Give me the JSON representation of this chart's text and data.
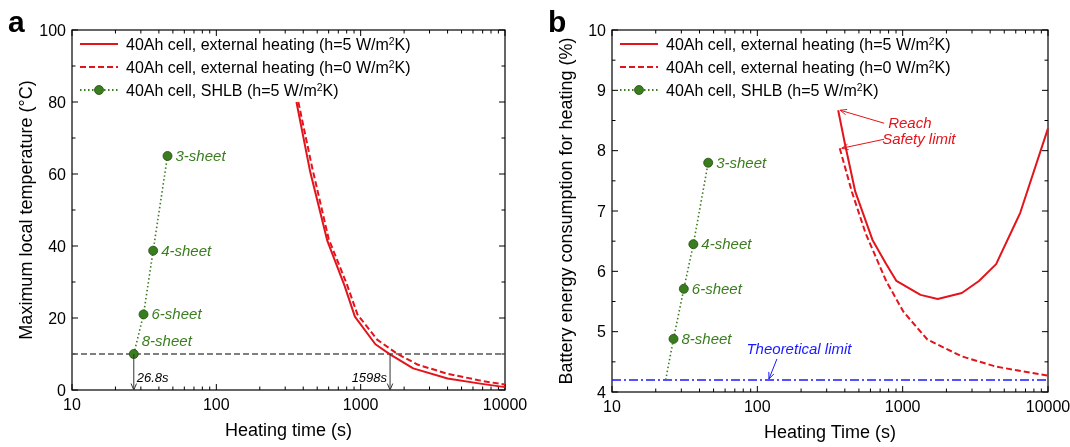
{
  "chart_data": [
    {
      "type": "line",
      "title": "a",
      "xlabel": "Heating time (s)",
      "ylabel": "Maximum local temperature (°C)",
      "log": "x",
      "legend": "top left",
      "xlim": [
        10,
        10000
      ],
      "ylim": [
        0,
        100
      ],
      "xticks": [
        10,
        {
          "value": 20,
          "label": null
        },
        {
          "value": 30,
          "label": null
        },
        {
          "value": 40,
          "label": null
        },
        {
          "value": 50,
          "label": null
        },
        {
          "value": 60,
          "label": null
        },
        {
          "value": 70,
          "label": null
        },
        {
          "value": 80,
          "label": null
        },
        {
          "value": 90,
          "label": null
        },
        100,
        {
          "value": 200,
          "label": null
        },
        {
          "value": 300,
          "label": null
        },
        {
          "value": 400,
          "label": null
        },
        {
          "value": 500,
          "label": null
        },
        {
          "value": 600,
          "label": null
        },
        {
          "value": 700,
          "label": null
        },
        {
          "value": 800,
          "label": null
        },
        {
          "value": 900,
          "label": null
        },
        1000,
        {
          "value": 2000,
          "label": null
        },
        {
          "value": 3000,
          "label": null
        },
        {
          "value": 4000,
          "label": null
        },
        {
          "value": 5000,
          "label": null
        },
        {
          "value": 6000,
          "label": null
        },
        {
          "value": 7000,
          "label": null
        },
        {
          "value": 8000,
          "label": null
        },
        {
          "value": 9000,
          "label": null
        },
        10000
      ],
      "yticks": [
        0,
        {
          "value": 10,
          "label": null
        },
        20,
        {
          "value": 30,
          "label": null
        },
        40,
        {
          "value": 50,
          "label": null
        },
        60,
        {
          "value": 70,
          "label": null
        },
        80,
        {
          "value": 90,
          "label": null
        },
        100
      ],
      "series": [
        {
          "name": "40Ah cell, external heating (h=5 W/m$^{2}$K)",
          "color": "#e3141b",
          "line_style": "solid",
          "marker": "none",
          "x": [
            359,
            447,
            588,
            773,
            912,
            1265,
            1598,
            2312,
            4000,
            6920,
            10000
          ],
          "values": [
            80,
            60.6,
            41.4,
            29,
            20.4,
            12.7,
            9.9,
            6,
            3.2,
            1.7,
            0.8
          ]
        },
        {
          "name": "40Ah cell, external heating (h=0 W/m$^{2}$K)",
          "color": "#e3141b",
          "line_style": "dashed",
          "marker": "none",
          "x": [
            370,
            460,
            600,
            800,
            950,
            1300,
            1800,
            2500,
            4000,
            7000,
            10000
          ],
          "values": [
            80,
            62,
            42,
            29.5,
            21,
            14,
            10,
            7,
            4.5,
            2.5,
            1.5
          ]
        },
        {
          "name": "40Ah cell, SHLB (h=5 W/m$^{2}$K)",
          "color": "#3a7d1e",
          "line_style": "dotted",
          "marker": "circle",
          "x": [
            26.8,
            31.3,
            36.5,
            45.9
          ],
          "values": [
            10,
            21,
            38.7,
            65
          ]
        }
      ],
      "ref_lines": [
        {
          "axis": "y",
          "value": 10,
          "color": "#555555",
          "line_style": "dashed"
        }
      ],
      "annotations": [
        {
          "text": "26.8s",
          "x": 26.8,
          "y": 10
        },
        {
          "text": "1598s",
          "x": 1598,
          "y": 10
        },
        {
          "text": "8-sheet",
          "x": 26.8,
          "y": 10
        },
        {
          "text": "6-sheet",
          "x": 31.3,
          "y": 21
        },
        {
          "text": "4-sheet",
          "x": 36.5,
          "y": 38.7
        },
        {
          "text": "3-sheet",
          "x": 45.9,
          "y": 65
        }
      ]
    },
    {
      "type": "line",
      "title": "b",
      "xlabel": "Heating Time (s)",
      "ylabel": "Battery energy consumption for heating (%)",
      "log": "x",
      "legend": "top left",
      "xlim": [
        10,
        10000
      ],
      "ylim": [
        4,
        10
      ],
      "xticks": [
        10,
        {
          "value": 20,
          "label": null
        },
        {
          "value": 30,
          "label": null
        },
        {
          "value": 40,
          "label": null
        },
        {
          "value": 50,
          "label": null
        },
        {
          "value": 60,
          "label": null
        },
        {
          "value": 70,
          "label": null
        },
        {
          "value": 80,
          "label": null
        },
        {
          "value": 90,
          "label": null
        },
        100,
        {
          "value": 200,
          "label": null
        },
        {
          "value": 300,
          "label": null
        },
        {
          "value": 400,
          "label": null
        },
        {
          "value": 500,
          "label": null
        },
        {
          "value": 600,
          "label": null
        },
        {
          "value": 700,
          "label": null
        },
        {
          "value": 800,
          "label": null
        },
        {
          "value": 900,
          "label": null
        },
        1000,
        {
          "value": 2000,
          "label": null
        },
        {
          "value": 3000,
          "label": null
        },
        {
          "value": 4000,
          "label": null
        },
        {
          "value": 5000,
          "label": null
        },
        {
          "value": 6000,
          "label": null
        },
        {
          "value": 7000,
          "label": null
        },
        {
          "value": 8000,
          "label": null
        },
        {
          "value": 9000,
          "label": null
        },
        10000
      ],
      "yticks": [
        4,
        {
          "value": 4.5,
          "label": null
        },
        5,
        {
          "value": 5.5,
          "label": null
        },
        6,
        {
          "value": 6.5,
          "label": null
        },
        7,
        {
          "value": 7.5,
          "label": null
        },
        8,
        {
          "value": 8.5,
          "label": null
        },
        9,
        {
          "value": 9.5,
          "label": null
        },
        10
      ],
      "series": [
        {
          "name": "40Ah cell, external heating (h=5 W/m$^{2}$K)",
          "color": "#e3141b",
          "line_style": "solid",
          "marker": "none",
          "x": [
            360,
            401,
            472,
            620,
            770,
            906,
            1327,
            1742,
            2553,
            3350,
            4396,
            6440,
            10000
          ],
          "values": [
            8.67,
            8.11,
            7.32,
            6.52,
            6.12,
            5.84,
            5.61,
            5.54,
            5.64,
            5.84,
            6.12,
            6.97,
            8.37
          ]
        },
        {
          "name": "40Ah cell, external heating (h=0 W/m$^{2}$K)",
          "color": "#e3141b",
          "line_style": "dashed",
          "marker": "none",
          "x": [
            369,
            447,
            556,
            770,
            1012,
            1479,
            2553,
            4396,
            10000
          ],
          "values": [
            8.04,
            7.32,
            6.63,
            5.84,
            5.33,
            4.87,
            4.59,
            4.42,
            4.27
          ]
        },
        {
          "name": "40Ah cell, SHLB (h=5 W/m$^{2}$K)",
          "color": "#3a7d1e",
          "line_style": "dotted",
          "marker": "circle",
          "x": [
            26.5,
            31.2,
            36.3,
            45.9
          ],
          "values": [
            4.88,
            5.71,
            6.45,
            7.8
          ]
        },
        {
          "color": "#3a7d1e",
          "line_style": "dotted",
          "marker": "none",
          "x": [
            23.4,
            26.5
          ],
          "values": [
            4.2,
            4.88
          ]
        }
      ],
      "ref_lines": [
        {
          "axis": "y",
          "value": 4.2,
          "label": "Theoretical limit",
          "color": "#1a1aff",
          "line_style": "dashdot"
        }
      ],
      "annotations": [
        {
          "text": "Reach Safety limit",
          "x": 360,
          "y": 8.67
        },
        {
          "text": "8-sheet",
          "x": 26.5,
          "y": 4.88
        },
        {
          "text": "6-sheet",
          "x": 31.2,
          "y": 5.71
        },
        {
          "text": "4-sheet",
          "x": 36.3,
          "y": 6.45
        },
        {
          "text": "3-sheet",
          "x": 45.9,
          "y": 7.8
        }
      ]
    }
  ]
}
